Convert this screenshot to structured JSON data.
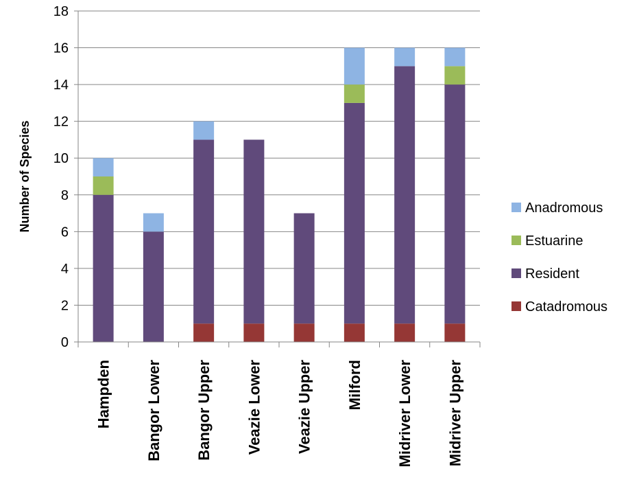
{
  "chart_data": {
    "type": "bar",
    "stacked": true,
    "title": "",
    "xlabel": "",
    "ylabel": "Number of Species",
    "ylim": [
      0,
      18
    ],
    "ytick_step": 2,
    "grid": true,
    "legend_position": "right",
    "categories": [
      "Hampden",
      "Bangor Lower",
      "Bangor Upper",
      "Veazie Lower",
      "Veazie Upper",
      "Milford",
      "Midriver Lower",
      "Midriver Upper"
    ],
    "series": [
      {
        "name": "Catadromous",
        "color": "#953735",
        "values": [
          0,
          0,
          1,
          1,
          1,
          1,
          1,
          1
        ]
      },
      {
        "name": "Resident",
        "color": "#604A7B",
        "values": [
          8,
          6,
          10,
          10,
          6,
          12,
          14,
          13
        ]
      },
      {
        "name": "Estuarine",
        "color": "#9BBB59",
        "values": [
          1,
          0,
          0,
          0,
          0,
          1,
          0,
          1
        ]
      },
      {
        "name": "Anadromous",
        "color": "#8EB4E3",
        "values": [
          1,
          1,
          1,
          0,
          0,
          2,
          1,
          1
        ]
      }
    ],
    "legend_order": [
      "Anadromous",
      "Estuarine",
      "Resident",
      "Catadromous"
    ]
  }
}
